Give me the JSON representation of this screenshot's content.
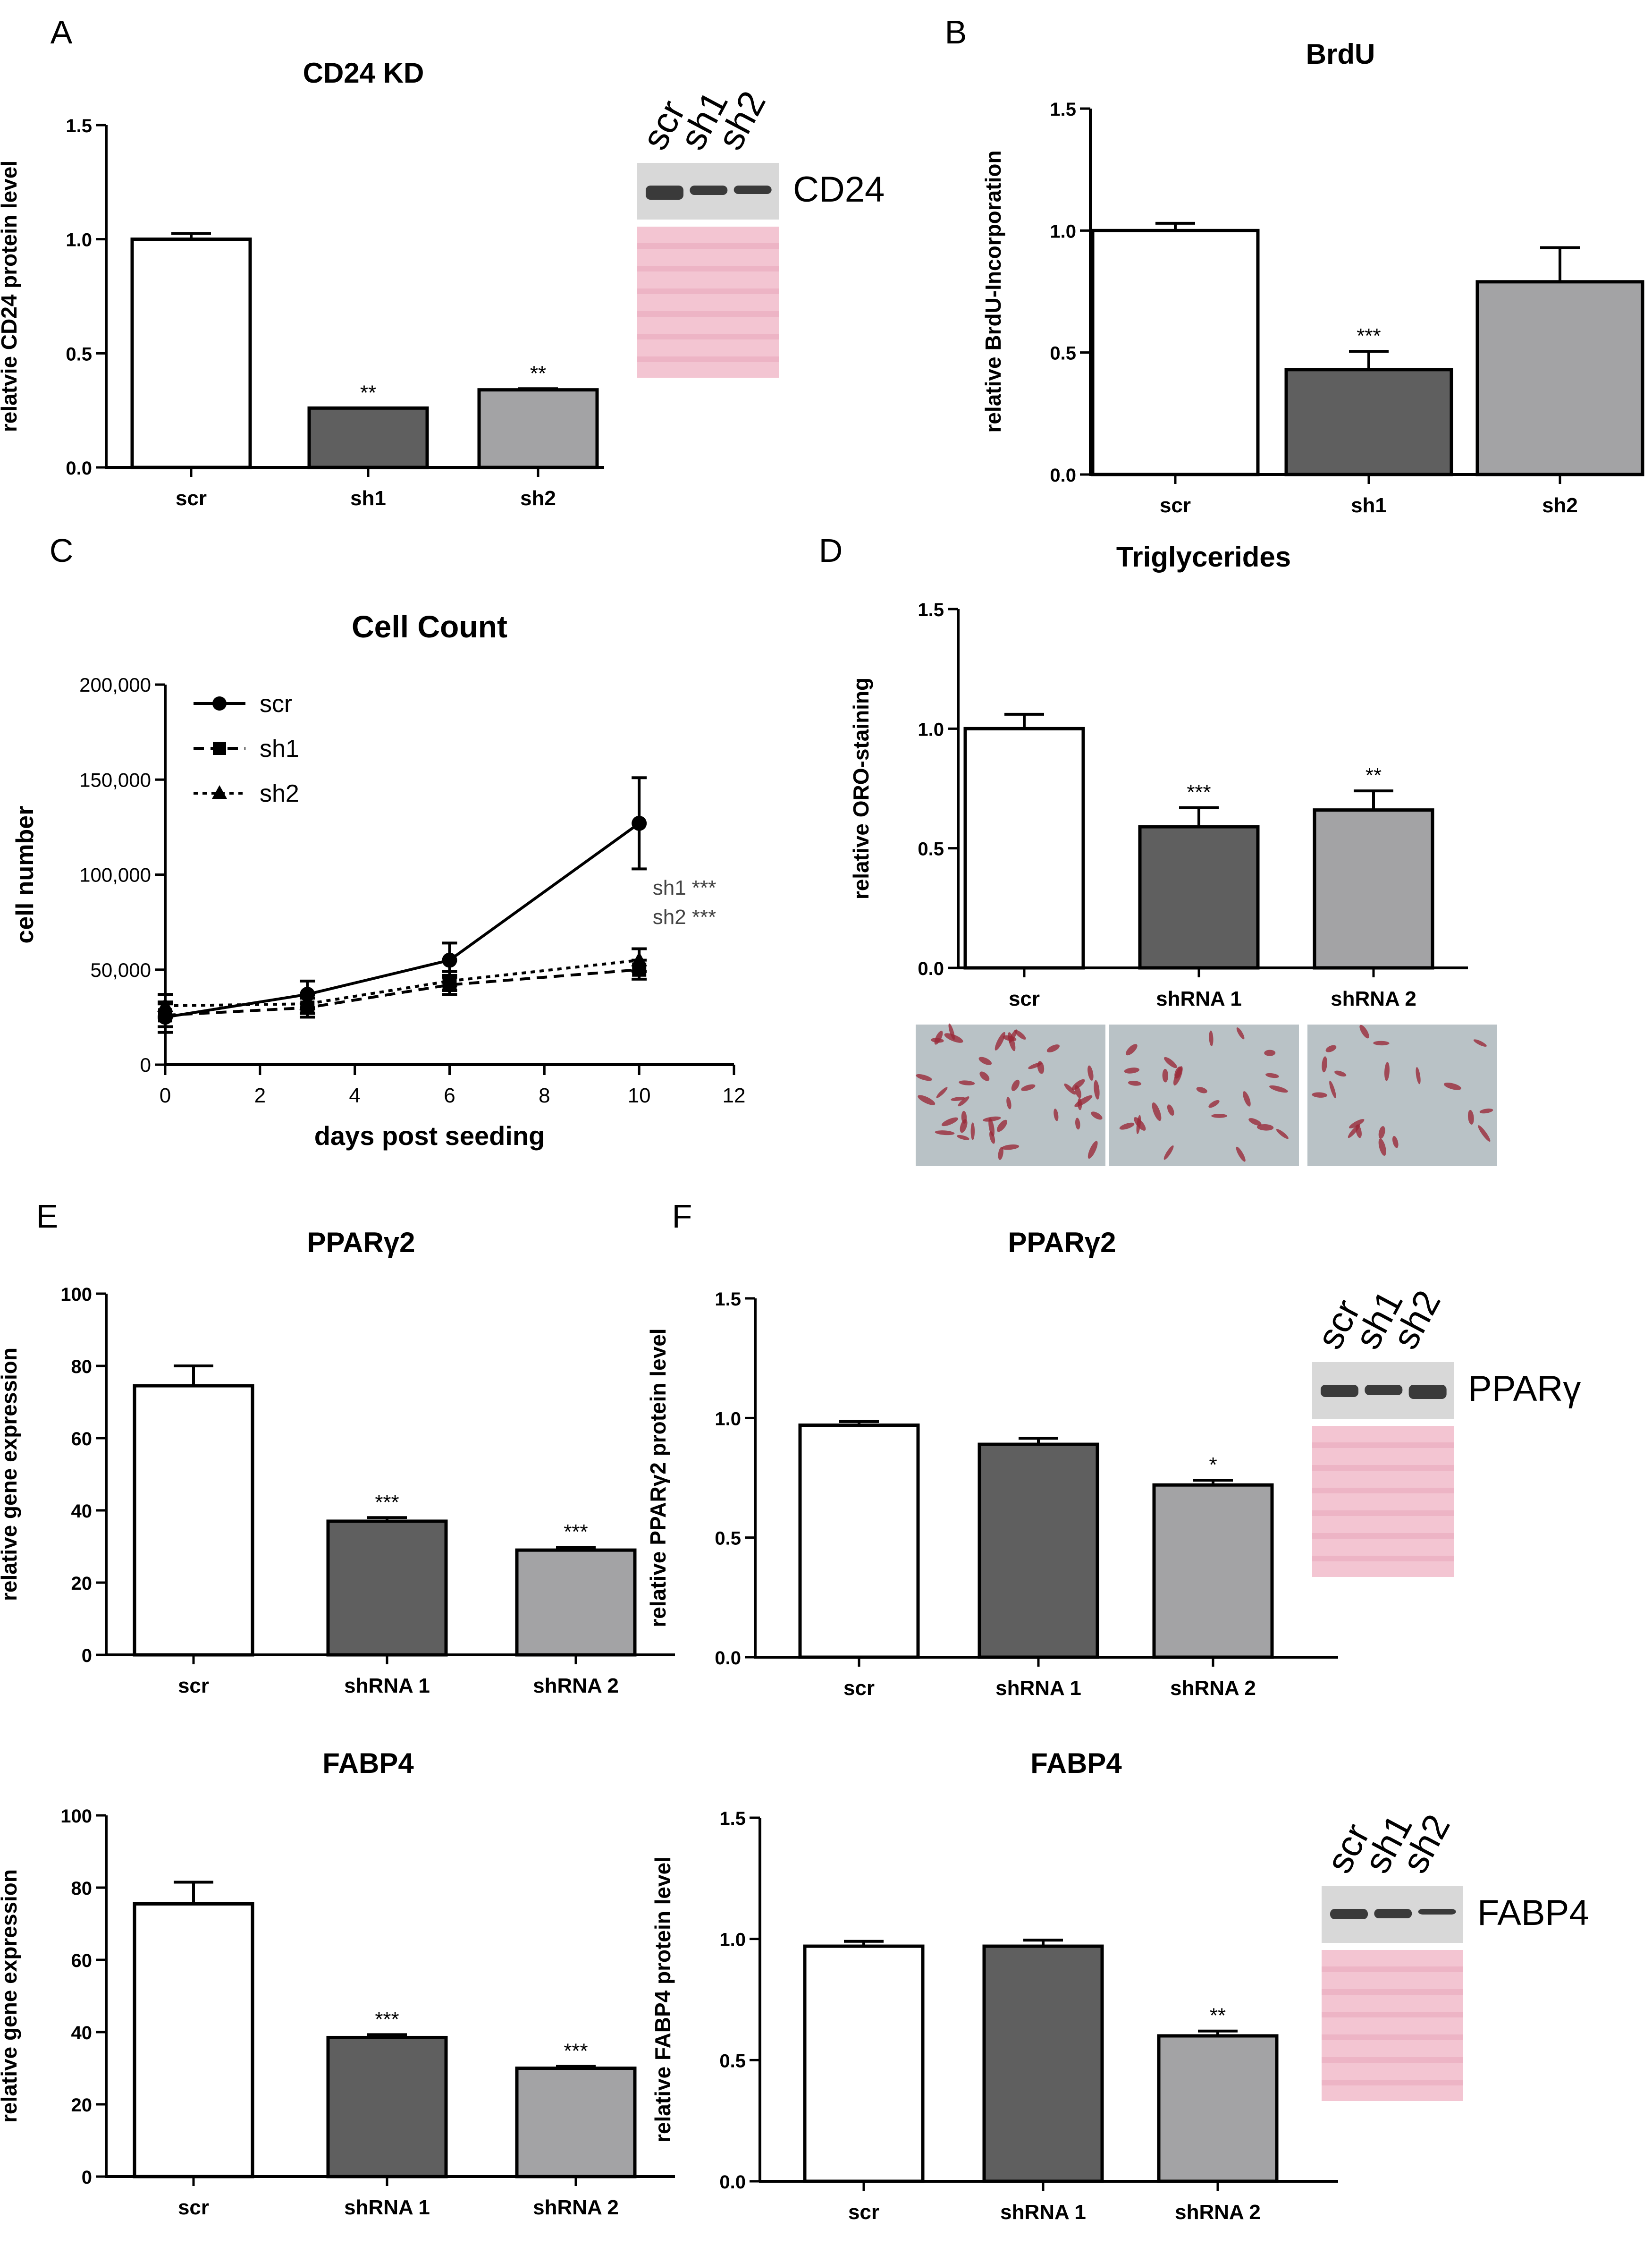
{
  "colors": {
    "scr": "#ffffff",
    "sh1": "#5f5f5f",
    "sh2": "#a3a3a5",
    "axis": "#000000",
    "blot_band": "#3a3a3a",
    "blot_bg": "#d8d8d8",
    "ponceau": "#f3c5d2",
    "oro_bg": "#b9c2c6",
    "oro_stain": "#9a2a3a"
  },
  "panels": [
    {
      "letter": "A",
      "icon": "western-blot-image",
      "blot_labels": [
        "scr",
        "sh1",
        "sh2"
      ],
      "blot_target": "CD24"
    },
    {
      "letter": "B"
    },
    {
      "letter": "C"
    },
    {
      "letter": "D",
      "icon": "oil-red-o-staining-micrographs"
    },
    {
      "letter": "E"
    },
    {
      "letter": "F",
      "blots": [
        {
          "icon": "western-blot-image",
          "blot_labels": [
            "scr",
            "sh1",
            "sh2"
          ],
          "blot_target": "PPARγ"
        },
        {
          "icon": "western-blot-image",
          "blot_labels": [
            "scr",
            "sh1",
            "sh2"
          ],
          "blot_target": "FABP4"
        }
      ]
    }
  ],
  "chart_data": [
    {
      "id": "A",
      "type": "bar",
      "title": "CD24 KD",
      "xlabel": "",
      "ylabel": "relatvie CD24 protein level",
      "categories": [
        "scr",
        "sh1",
        "sh2"
      ],
      "values": [
        1.0,
        0.26,
        0.34
      ],
      "errors": [
        0.025,
        0.0,
        0.005
      ],
      "significance": [
        "",
        "**",
        "**"
      ],
      "ylim": [
        0,
        1.5
      ],
      "yticks": [
        "0.0",
        "0.5",
        "1.0",
        "1.5"
      ],
      "ytick_values": [
        0,
        0.5,
        1.0,
        1.5
      ]
    },
    {
      "id": "B",
      "type": "bar",
      "title": "BrdU",
      "xlabel": "",
      "ylabel": "relative BrdU-Incorporation",
      "categories": [
        "scr",
        "sh1",
        "sh2"
      ],
      "values": [
        1.0,
        0.43,
        0.79
      ],
      "errors": [
        0.03,
        0.075,
        0.14
      ],
      "significance": [
        "",
        "***",
        ""
      ],
      "ylim": [
        0,
        1.5
      ],
      "yticks": [
        "0.0",
        "0.5",
        "1.0",
        "1.5"
      ],
      "ytick_values": [
        0,
        0.5,
        1.0,
        1.5
      ]
    },
    {
      "id": "C",
      "type": "line",
      "title": "Cell Count",
      "xlabel": "days post seeding",
      "ylabel": "cell number",
      "x": [
        0,
        3,
        6,
        10
      ],
      "series": [
        {
          "name": "scr",
          "marker": "circle",
          "style": "solid",
          "values": [
            25000,
            37000,
            55000,
            127000
          ],
          "errors": [
            8000,
            7000,
            9000,
            24000
          ]
        },
        {
          "name": "sh1",
          "marker": "square",
          "style": "dashed",
          "values": [
            26000,
            30000,
            42000,
            50000
          ],
          "errors": [
            6000,
            5000,
            5000,
            5000
          ]
        },
        {
          "name": "sh2",
          "marker": "triangle",
          "style": "dotted",
          "values": [
            31000,
            32000,
            44000,
            55000
          ],
          "errors": [
            6000,
            5000,
            5000,
            6000
          ]
        }
      ],
      "annotations": [
        "sh1 ***",
        "sh2 ***"
      ],
      "xlim": [
        0,
        12
      ],
      "xticks": [
        "0",
        "2",
        "4",
        "6",
        "8",
        "10",
        "12"
      ],
      "xtick_values": [
        0,
        2,
        4,
        6,
        8,
        10,
        12
      ],
      "ylim": [
        0,
        200000
      ],
      "yticks": [
        "0",
        "50,000",
        "100,000",
        "150,000",
        "200,000"
      ],
      "ytick_values": [
        0,
        50000,
        100000,
        150000,
        200000
      ]
    },
    {
      "id": "D",
      "type": "bar",
      "title": "Triglycerides",
      "xlabel": "",
      "ylabel": "relative ORO-staining",
      "categories": [
        "scr",
        "shRNA 1",
        "shRNA 2"
      ],
      "values": [
        1.0,
        0.59,
        0.66
      ],
      "errors": [
        0.06,
        0.08,
        0.08
      ],
      "significance": [
        "",
        "***",
        "**"
      ],
      "ylim": [
        0,
        1.5
      ],
      "yticks": [
        "0.0",
        "0.5",
        "1.0",
        "1.5"
      ],
      "ytick_values": [
        0,
        0.5,
        1.0,
        1.5
      ]
    },
    {
      "id": "E1",
      "type": "bar",
      "title": "PPARγ2",
      "xlabel": "",
      "ylabel": "relative gene expression",
      "categories": [
        "scr",
        "shRNA 1",
        "shRNA 2"
      ],
      "values": [
        74.5,
        37,
        29
      ],
      "errors": [
        5.5,
        1.0,
        0.8
      ],
      "significance": [
        "",
        "***",
        "***"
      ],
      "ylim": [
        0,
        100
      ],
      "yticks": [
        "0",
        "20",
        "40",
        "60",
        "80",
        "100"
      ],
      "ytick_values": [
        0,
        20,
        40,
        60,
        80,
        100
      ]
    },
    {
      "id": "F1",
      "type": "bar",
      "title": "PPARγ2",
      "xlabel": "",
      "ylabel": "relative PPARγ2 protein level",
      "categories": [
        "scr",
        "shRNA 1",
        "shRNA 2"
      ],
      "values": [
        0.97,
        0.89,
        0.72
      ],
      "errors": [
        0.015,
        0.025,
        0.02
      ],
      "significance": [
        "",
        "",
        "*"
      ],
      "ylim": [
        0,
        1.5
      ],
      "yticks": [
        "0.0",
        "0.5",
        "1.0",
        "1.5"
      ],
      "ytick_values": [
        0,
        0.5,
        1.0,
        1.5
      ]
    },
    {
      "id": "E2",
      "type": "bar",
      "title": "FABP4",
      "xlabel": "",
      "ylabel": "relative gene expression",
      "categories": [
        "scr",
        "shRNA 1",
        "shRNA 2"
      ],
      "values": [
        75.5,
        38.5,
        30
      ],
      "errors": [
        6.0,
        0.8,
        0.5
      ],
      "significance": [
        "",
        "***",
        "***"
      ],
      "ylim": [
        0,
        100
      ],
      "yticks": [
        "0",
        "20",
        "40",
        "60",
        "80",
        "100"
      ],
      "ytick_values": [
        0,
        20,
        40,
        60,
        80,
        100
      ]
    },
    {
      "id": "F2",
      "type": "bar",
      "title": "FABP4",
      "xlabel": "",
      "ylabel": "relative FABP4 protein level",
      "categories": [
        "scr",
        "shRNA 1",
        "shRNA 2"
      ],
      "values": [
        0.97,
        0.97,
        0.6
      ],
      "errors": [
        0.02,
        0.025,
        0.02
      ],
      "significance": [
        "",
        "",
        "**"
      ],
      "ylim": [
        0,
        1.5
      ],
      "yticks": [
        "0.0",
        "0.5",
        "1.0",
        "1.5"
      ],
      "ytick_values": [
        0,
        0.5,
        1.0,
        1.5
      ]
    }
  ]
}
